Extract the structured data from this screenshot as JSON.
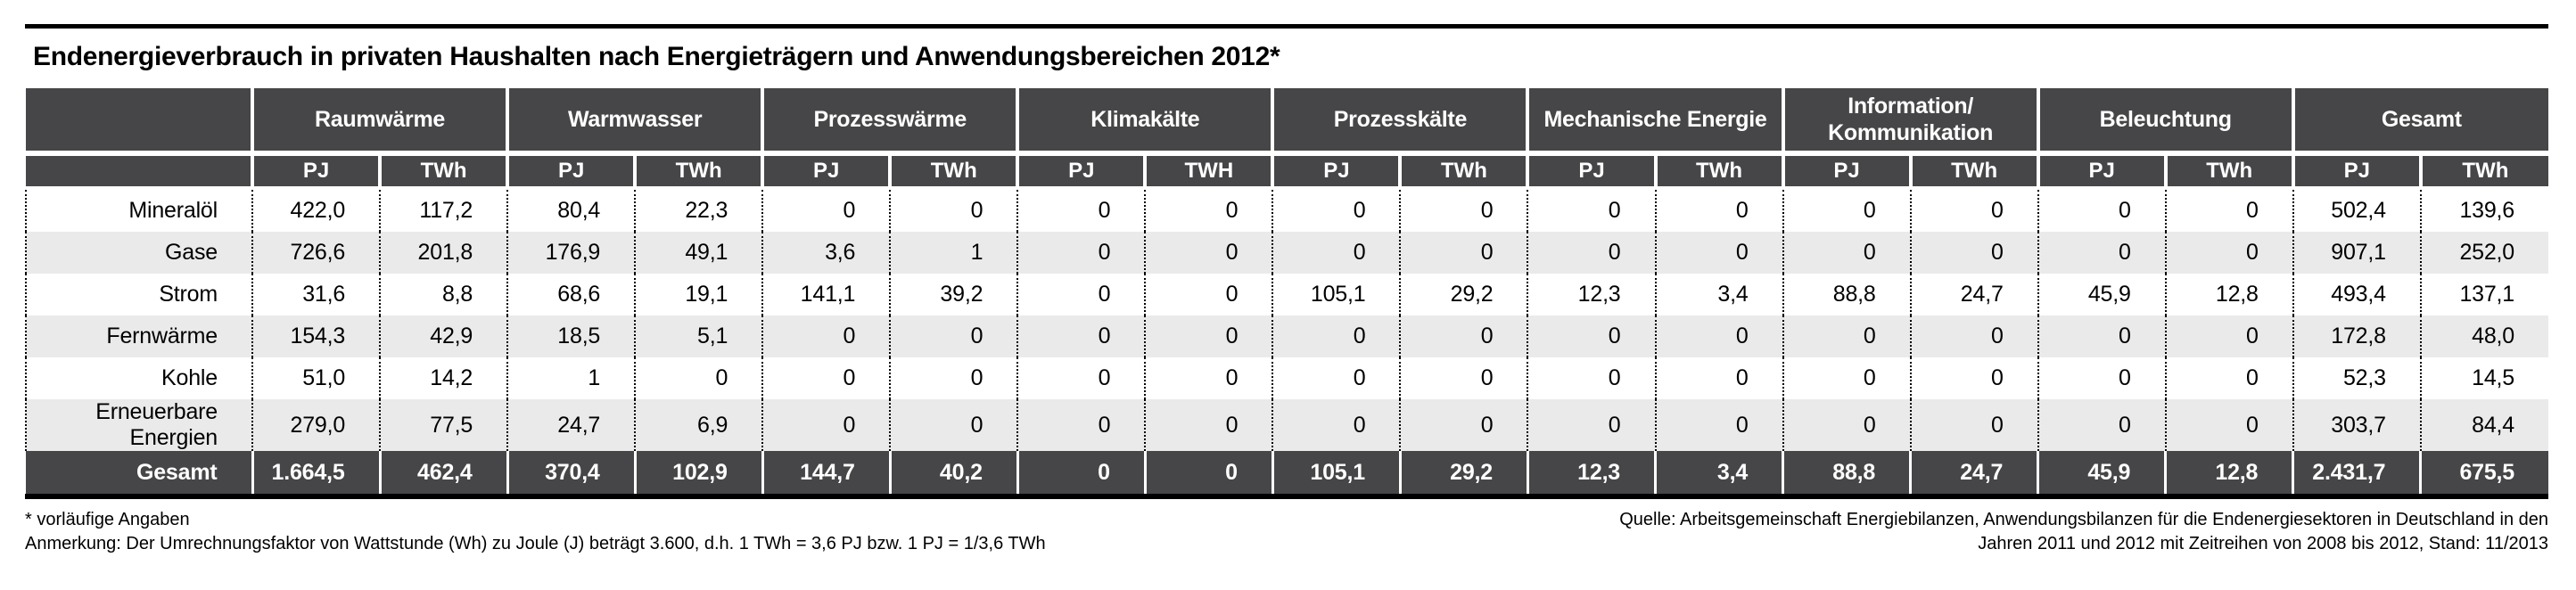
{
  "chart_data": {
    "type": "table",
    "title": "Endenergieverbrauch in privaten Haushalten nach Energieträgern und Anwendungsbereichen 2012*",
    "column_groups": [
      {
        "label": "Raumwärme",
        "sub": [
          "PJ",
          "TWh"
        ]
      },
      {
        "label": "Warmwasser",
        "sub": [
          "PJ",
          "TWh"
        ]
      },
      {
        "label": "Prozesswärme",
        "sub": [
          "PJ",
          "TWh"
        ]
      },
      {
        "label": "Klimakälte",
        "sub": [
          "PJ",
          "TWH"
        ]
      },
      {
        "label": "Prozesskälte",
        "sub": [
          "PJ",
          "TWh"
        ]
      },
      {
        "label": "Mechanische Energie",
        "sub": [
          "PJ",
          "TWh"
        ]
      },
      {
        "label": "Information/\nKommunikation",
        "sub": [
          "PJ",
          "TWh"
        ]
      },
      {
        "label": "Beleuchtung",
        "sub": [
          "PJ",
          "TWh"
        ]
      },
      {
        "label": "Gesamt",
        "sub": [
          "PJ",
          "TWh"
        ]
      }
    ],
    "rows": [
      {
        "label": "Mineralöl",
        "values": [
          "422,0",
          "117,2",
          "80,4",
          "22,3",
          "0",
          "0",
          "0",
          "0",
          "0",
          "0",
          "0",
          "0",
          "0",
          "0",
          "0",
          "0",
          "502,4",
          "139,6"
        ]
      },
      {
        "label": "Gase",
        "values": [
          "726,6",
          "201,8",
          "176,9",
          "49,1",
          "3,6",
          "1",
          "0",
          "0",
          "0",
          "0",
          "0",
          "0",
          "0",
          "0",
          "0",
          "0",
          "907,1",
          "252,0"
        ]
      },
      {
        "label": "Strom",
        "values": [
          "31,6",
          "8,8",
          "68,6",
          "19,1",
          "141,1",
          "39,2",
          "0",
          "0",
          "105,1",
          "29,2",
          "12,3",
          "3,4",
          "88,8",
          "24,7",
          "45,9",
          "12,8",
          "493,4",
          "137,1"
        ]
      },
      {
        "label": "Fernwärme",
        "values": [
          "154,3",
          "42,9",
          "18,5",
          "5,1",
          "0",
          "0",
          "0",
          "0",
          "0",
          "0",
          "0",
          "0",
          "0",
          "0",
          "0",
          "0",
          "172,8",
          "48,0"
        ]
      },
      {
        "label": "Kohle",
        "values": [
          "51,0",
          "14,2",
          "1",
          "0",
          "0",
          "0",
          "0",
          "0",
          "0",
          "0",
          "0",
          "0",
          "0",
          "0",
          "0",
          "0",
          "52,3",
          "14,5"
        ]
      },
      {
        "label": "Erneuerbare Energien",
        "values": [
          "279,0",
          "77,5",
          "24,7",
          "6,9",
          "0",
          "0",
          "0",
          "0",
          "0",
          "0",
          "0",
          "0",
          "0",
          "0",
          "0",
          "0",
          "303,7",
          "84,4"
        ]
      }
    ],
    "total_row": {
      "label": "Gesamt",
      "values": [
        "1.664,5",
        "462,4",
        "370,4",
        "102,9",
        "144,7",
        "40,2",
        "0",
        "0",
        "105,1",
        "29,2",
        "12,3",
        "3,4",
        "88,8",
        "24,7",
        "45,9",
        "12,8",
        "2.431,7",
        "675,5"
      ]
    }
  },
  "footnotes": {
    "asterisk": "* vorläufige Angaben",
    "note": "Anmerkung: Der Umrechnungsfaktor von Wattstunde (Wh) zu Joule (J) beträgt 3.600, d.h. 1 TWh = 3,6 PJ bzw. 1 PJ = 1/3,6 TWh"
  },
  "source": {
    "line1": "Quelle: Arbeitsgemeinschaft Energiebilanzen, Anwendungsbilanzen für die Endenergiesektoren in Deutschland in den",
    "line2": "Jahren 2011 und 2012 mit Zeitreihen von 2008 bis 2012, Stand: 11/2013"
  },
  "colors": {
    "header_bg": "#464648",
    "row_alt_bg": "#eaeaea",
    "rule": "#000000",
    "header_text": "#ffffff"
  }
}
